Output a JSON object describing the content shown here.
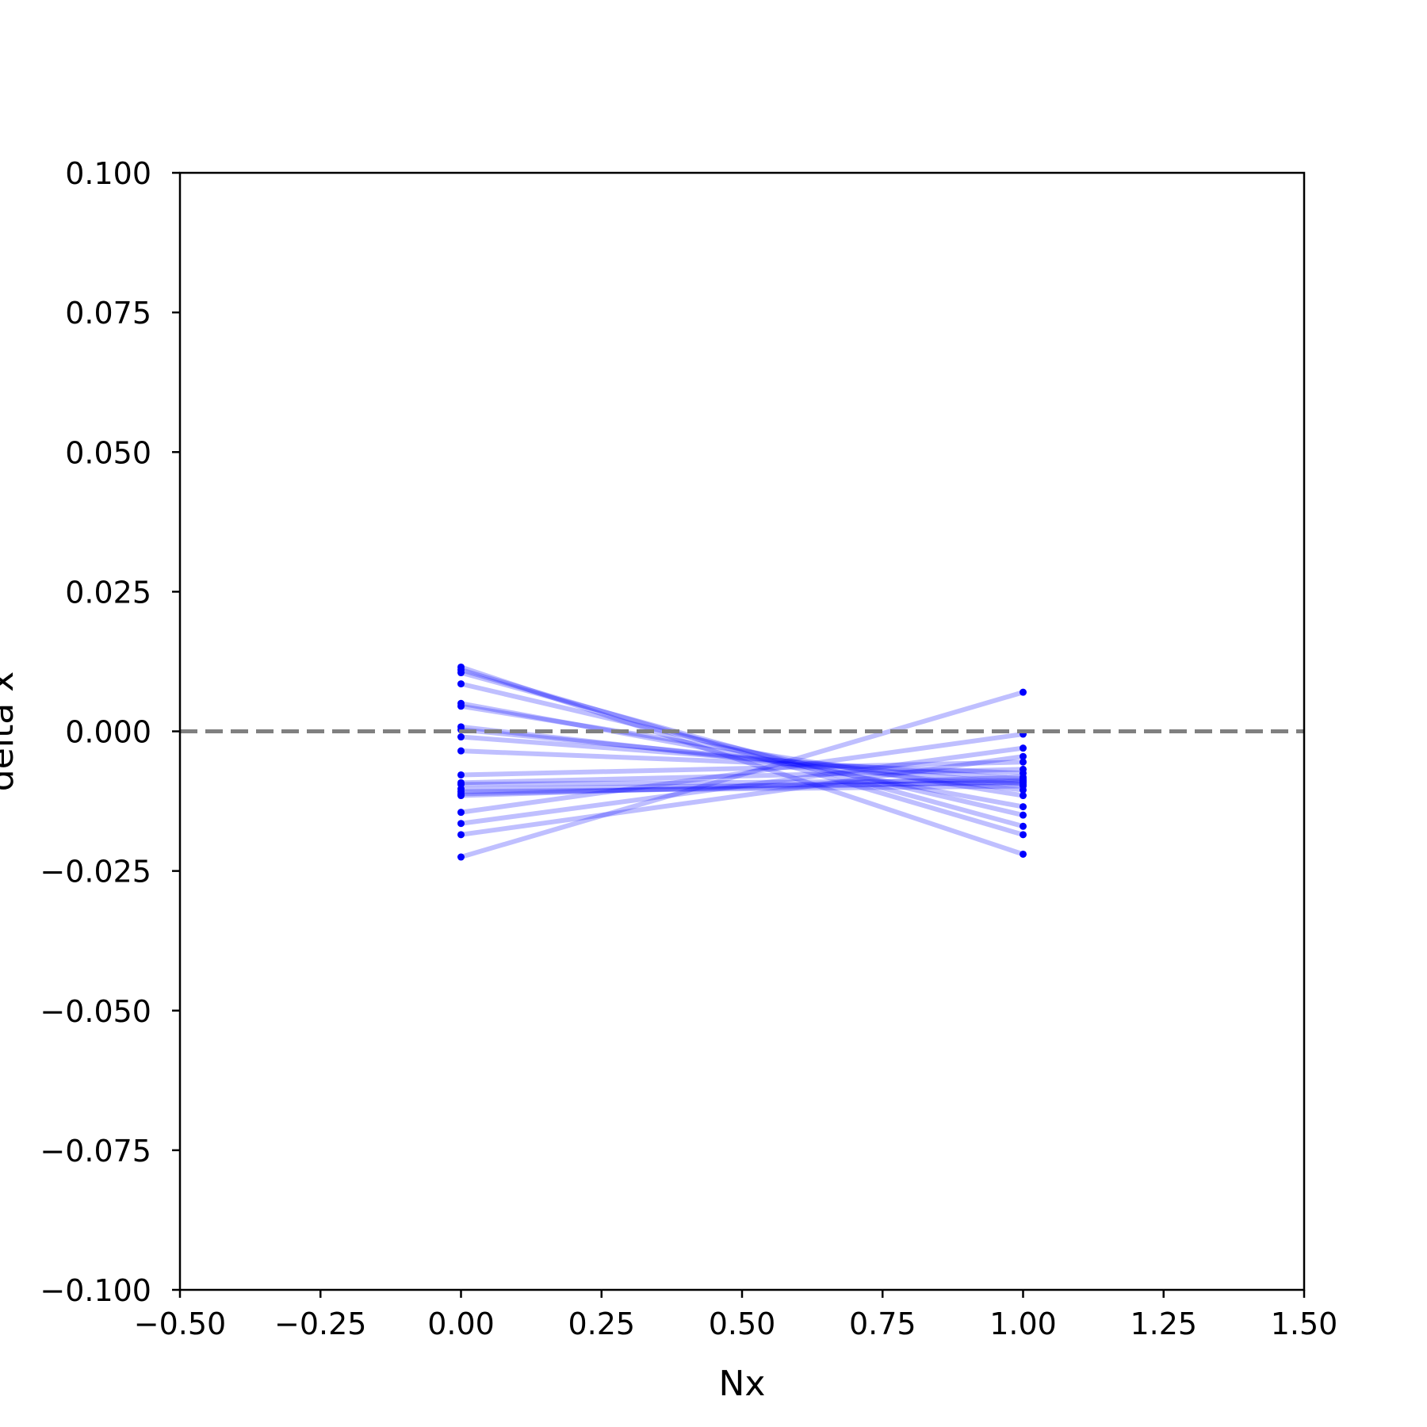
{
  "chart_data": {
    "type": "line",
    "title": "",
    "xlabel": "Nx",
    "ylabel": "delta x",
    "xlim": [
      -0.5,
      1.5
    ],
    "ylim": [
      -0.1,
      0.1
    ],
    "xticks": [
      -0.5,
      -0.25,
      0.0,
      0.25,
      0.5,
      0.75,
      1.0,
      1.25,
      1.5
    ],
    "xtick_labels": [
      "−0.50",
      "−0.25",
      "0.00",
      "0.25",
      "0.50",
      "0.75",
      "1.00",
      "1.25",
      "1.50"
    ],
    "yticks": [
      0.1,
      0.075,
      0.05,
      0.025,
      0.0,
      -0.025,
      -0.05,
      -0.075,
      -0.1
    ],
    "ytick_labels": [
      "0.100",
      "0.075",
      "0.050",
      "0.025",
      "0.000",
      "−0.025",
      "−0.050",
      "−0.075",
      "−0.100"
    ],
    "grid": false,
    "legend": "none",
    "reference_line": {
      "y": 0.0,
      "style": "dashed",
      "color": "#808080"
    },
    "line_color": "#0000ff",
    "line_alpha": 0.25,
    "x": [
      0,
      1
    ],
    "series": [
      {
        "values": [
          0.0115,
          -0.022
        ]
      },
      {
        "values": [
          0.011,
          -0.0185
        ]
      },
      {
        "values": [
          0.0105,
          -0.017
        ]
      },
      {
        "values": [
          0.0085,
          -0.015
        ]
      },
      {
        "values": [
          0.005,
          -0.0135
        ]
      },
      {
        "values": [
          0.0045,
          -0.0115
        ]
      },
      {
        "values": [
          0.0008,
          -0.0105
        ]
      },
      {
        "values": [
          0.0003,
          -0.0095
        ]
      },
      {
        "values": [
          -0.001,
          -0.0085
        ]
      },
      {
        "values": [
          -0.0035,
          -0.0075
        ]
      },
      {
        "values": [
          -0.0078,
          -0.0055
        ]
      },
      {
        "values": [
          -0.0092,
          -0.0068
        ]
      },
      {
        "values": [
          -0.0095,
          -0.0088
        ]
      },
      {
        "values": [
          -0.0103,
          -0.0092
        ]
      },
      {
        "values": [
          -0.0108,
          -0.0098
        ]
      },
      {
        "values": [
          -0.0112,
          -0.009
        ]
      },
      {
        "values": [
          -0.0115,
          -0.0082
        ]
      },
      {
        "values": [
          -0.0145,
          -0.0005
        ]
      },
      {
        "values": [
          -0.0165,
          -0.003
        ]
      },
      {
        "values": [
          -0.0185,
          -0.0045
        ]
      },
      {
        "values": [
          -0.0225,
          0.007
        ]
      }
    ]
  }
}
